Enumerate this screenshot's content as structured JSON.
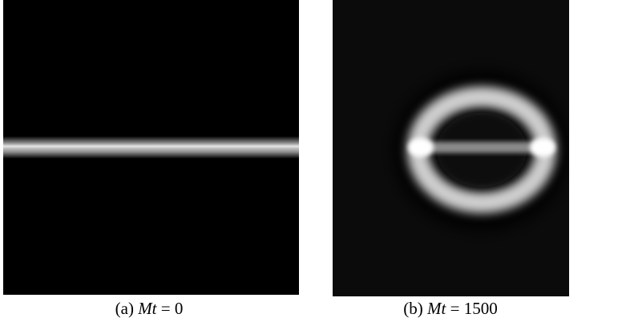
{
  "panels": [
    {
      "label": "(a)",
      "math_var": "Mt",
      "math_rest": "= 0"
    },
    {
      "label": "(b)",
      "math_var": "Mt",
      "math_rest": "= 1500"
    }
  ]
}
